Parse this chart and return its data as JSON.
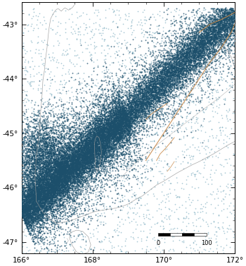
{
  "lon_min": 166.0,
  "lon_max": 172.0,
  "lat_min": -47.2,
  "lat_max": -42.7,
  "xticks": [
    166,
    168,
    170,
    172
  ],
  "yticks": [
    -43,
    -44,
    -45,
    -46,
    -47
  ],
  "xlabel_fmt": "{}°",
  "ylabel_fmt": "{}°",
  "dot_color_dense": "#1c4f6b",
  "dot_color_sparse": "#7aabbe",
  "fault_color": "#c8894a",
  "coast_color": "#999999",
  "bg_color": "#ffffff",
  "seed": 42
}
